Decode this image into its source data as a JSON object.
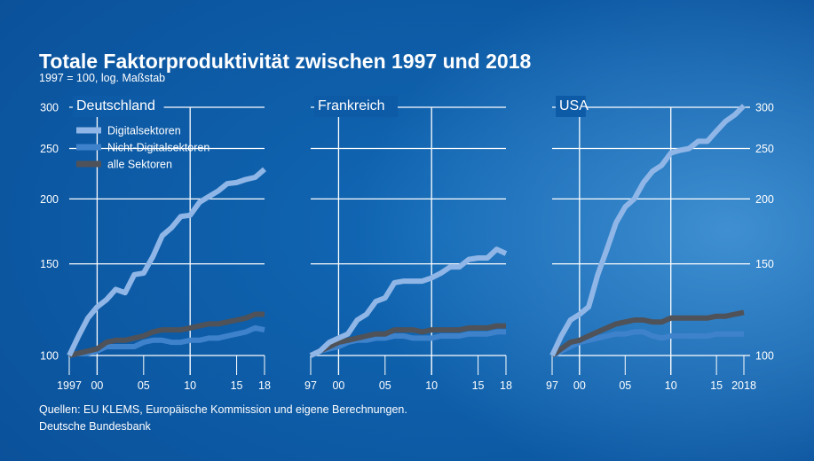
{
  "header": {
    "title": "Totale Faktorproduktivität zwischen 1997 und 2018",
    "subtitle": "1997 = 100, log. Maßstab"
  },
  "footer": {
    "source": "Quellen: EU KLEMS, Europäische Kommission und eigene Berechnungen.",
    "publisher": "Deutsche Bundesbank"
  },
  "colors": {
    "digital": "#8fb6e6",
    "non_digital": "#3f82cc",
    "all_sectors": "#4f5258",
    "grid": "#ffffff"
  },
  "chart_data": [
    {
      "type": "line",
      "title": "Deutschland",
      "y_scale": "log",
      "ylim": [
        100,
        300
      ],
      "y_ticks": [
        100,
        150,
        200,
        250,
        300
      ],
      "y_tick_side": "left",
      "x_ticks": [
        1997,
        2000,
        2005,
        2010,
        2015,
        2018
      ],
      "x_tick_labels": [
        "1997",
        "00",
        "05",
        "10",
        "15",
        "18"
      ],
      "x": [
        1997,
        1998,
        1999,
        2000,
        2001,
        2002,
        2003,
        2004,
        2005,
        2006,
        2007,
        2008,
        2009,
        2010,
        2011,
        2012,
        2013,
        2014,
        2015,
        2016,
        2017,
        2018
      ],
      "legend": "top-left",
      "series": [
        {
          "name": "Digitalsektoren",
          "key": "digital",
          "values": [
            100,
            109,
            118,
            124,
            128,
            134,
            132,
            143,
            144,
            155,
            170,
            176,
            185,
            186,
            197,
            202,
            207,
            214,
            215,
            218,
            220,
            228
          ]
        },
        {
          "name": "Nicht-Digitalsektoren",
          "key": "non_digital",
          "values": [
            100,
            101,
            101,
            102,
            104,
            104,
            104,
            104,
            106,
            107,
            107,
            106,
            106,
            107,
            107,
            108,
            108,
            109,
            110,
            111,
            113,
            112
          ]
        },
        {
          "name": "alle Sektoren",
          "key": "all_sectors",
          "values": [
            100,
            101,
            102,
            103,
            106,
            107,
            107,
            108,
            109,
            111,
            112,
            112,
            112,
            113,
            114,
            115,
            115,
            116,
            117,
            118,
            120,
            120
          ]
        }
      ]
    },
    {
      "type": "line",
      "title": "Frankreich",
      "y_scale": "log",
      "ylim": [
        100,
        300
      ],
      "y_ticks": [
        100,
        150,
        200,
        250,
        300
      ],
      "x_ticks": [
        1997,
        2000,
        2005,
        2010,
        2015,
        2018
      ],
      "x_tick_labels": [
        "97",
        "00",
        "05",
        "10",
        "15",
        "18"
      ],
      "x": [
        1997,
        1998,
        1999,
        2000,
        2001,
        2002,
        2003,
        2004,
        2005,
        2006,
        2007,
        2008,
        2009,
        2010,
        2011,
        2012,
        2013,
        2014,
        2015,
        2016,
        2017,
        2018
      ],
      "series": [
        {
          "name": "Digitalsektoren",
          "key": "digital",
          "values": [
            100,
            102,
            106,
            108,
            110,
            117,
            120,
            127,
            129,
            138,
            139,
            139,
            139,
            141,
            144,
            148,
            148,
            153,
            154,
            154,
            160,
            157
          ]
        },
        {
          "name": "Nicht-Digitalsektoren",
          "key": "non_digital",
          "values": [
            100,
            102,
            103,
            104,
            106,
            107,
            107,
            108,
            108,
            109,
            109,
            108,
            108,
            108,
            109,
            109,
            109,
            110,
            110,
            110,
            111,
            111
          ]
        },
        {
          "name": "alle Sektoren",
          "key": "all_sectors",
          "values": [
            100,
            102,
            104,
            106,
            107,
            108,
            109,
            110,
            110,
            112,
            112,
            112,
            111,
            112,
            112,
            112,
            112,
            113,
            113,
            113,
            114,
            114
          ]
        }
      ]
    },
    {
      "type": "line",
      "title": "USA",
      "y_scale": "log",
      "ylim": [
        100,
        300
      ],
      "y_ticks": [
        100,
        150,
        200,
        250,
        300
      ],
      "y_tick_side": "right",
      "x_ticks": [
        1997,
        2000,
        2005,
        2010,
        2015,
        2018
      ],
      "x_tick_labels": [
        "97",
        "00",
        "05",
        "10",
        "15",
        "2018"
      ],
      "x": [
        1997,
        1998,
        1999,
        2000,
        2001,
        2002,
        2003,
        2004,
        2005,
        2006,
        2007,
        2008,
        2009,
        2010,
        2011,
        2012,
        2013,
        2014,
        2015,
        2016,
        2017,
        2018
      ],
      "series": [
        {
          "name": "Digitalsektoren",
          "key": "digital",
          "values": [
            100,
            109,
            117,
            120,
            124,
            143,
            160,
            180,
            193,
            200,
            215,
            226,
            232,
            245,
            248,
            250,
            258,
            258,
            270,
            282,
            290,
            302
          ]
        },
        {
          "name": "Nicht-Digitalsektoren",
          "key": "non_digital",
          "values": [
            100,
            102,
            104,
            106,
            107,
            108,
            109,
            110,
            110,
            111,
            111,
            109,
            108,
            109,
            109,
            109,
            109,
            109,
            110,
            110,
            110,
            110
          ]
        },
        {
          "name": "alle Sektoren",
          "key": "all_sectors",
          "values": [
            100,
            103,
            106,
            107,
            109,
            111,
            113,
            115,
            116,
            117,
            117,
            116,
            116,
            118,
            118,
            118,
            118,
            118,
            119,
            119,
            120,
            121
          ]
        }
      ]
    }
  ]
}
